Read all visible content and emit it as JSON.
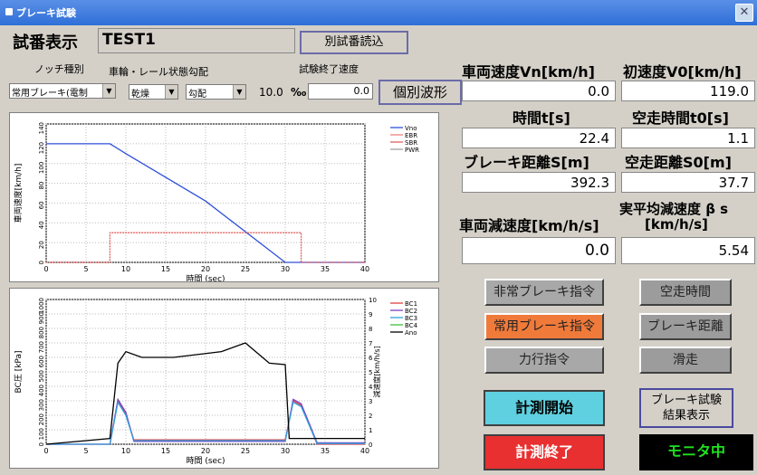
{
  "window": {
    "title": "ブレーキ試験"
  },
  "header": {
    "label": "試番表示",
    "test_id": "TEST1",
    "load_button": "別試番読込",
    "waveform_button": "個別波形"
  },
  "conditions": {
    "notch_label": "ノッチ種別",
    "wheel_label": "車輪・レール状態",
    "grade_label": "勾配",
    "end_speed_label": "試験終了速度",
    "notch_value": "常用ブレーキ(電制",
    "wheel_value": "乾燥",
    "grade_value": "勾配",
    "grade_percent": "10.0",
    "grade_unit": "‰",
    "end_speed_value": "0.0"
  },
  "readouts": {
    "vn_label": "車両速度Vn[km/h]",
    "vn_value": "0.0",
    "v0_label": "初速度V0[km/h]",
    "v0_value": "119.0",
    "t_label": "時間t[s]",
    "t_value": "22.4",
    "t0_label": "空走時間t0[s]",
    "t0_value": "1.1",
    "s_label": "ブレーキ距離S[m]",
    "s_value": "392.3",
    "s0_label": "空走距離S0[m]",
    "s0_value": "37.7",
    "decel_label": "車両減速度[km/h/s]",
    "decel_value": "0.0",
    "beta_label_1": "実平均減速度 β s",
    "beta_label_2": "[km/h/s]",
    "beta_value": "5.54"
  },
  "indicators": {
    "emergency": "非常ブレーキ指令",
    "free_run": "空走時間",
    "service": "常用ブレーキ指令",
    "brake_distance": "ブレーキ距離",
    "power": "力行指令",
    "slide": "滑走"
  },
  "controls": {
    "start": "計測開始",
    "result": "ブレーキ試験\n結果表示",
    "stop": "計測終了",
    "monitor": "モニタ中"
  },
  "colors": {
    "start_bg": "#5fd0e0",
    "stop_bg": "#e83030",
    "monitor_bg": "#000000",
    "monitor_fg": "#20e020",
    "service_bg": "#f07a3a"
  },
  "chart_data": [
    {
      "type": "line",
      "xlabel": "時間 (sec)",
      "ylabel": "車両速度[km/h]",
      "xlim": [
        0,
        40
      ],
      "ylim": [
        0,
        140
      ],
      "xticks": [
        0,
        5,
        10,
        15,
        20,
        25,
        30,
        35,
        40
      ],
      "yticks": [
        0,
        20,
        40,
        60,
        80,
        100,
        120,
        140
      ],
      "legend": [
        "Vno",
        "EBR",
        "SBR",
        "PWR"
      ],
      "series": [
        {
          "name": "Vno",
          "color": "#3050d8",
          "points": [
            [
              0,
              120
            ],
            [
              8,
              120
            ],
            [
              10,
              110
            ],
            [
              20,
              62
            ],
            [
              30,
              0
            ],
            [
              40,
              0
            ]
          ]
        },
        {
          "name": "EBR",
          "color": "#f08080",
          "points": []
        },
        {
          "name": "SBR",
          "color": "#e06060",
          "points": [
            [
              0,
              0
            ],
            [
              8,
              0
            ],
            [
              8,
              30
            ],
            [
              32,
              30
            ],
            [
              32,
              0
            ],
            [
              40,
              0
            ]
          ]
        },
        {
          "name": "PWR",
          "color": "#a0a0a0",
          "points": []
        }
      ]
    },
    {
      "type": "line",
      "xlabel": "時間 (sec)",
      "ylabel": "BC圧 [kPa]",
      "ylabel_right": "減速度[km/h/s]",
      "xlim": [
        0,
        40
      ],
      "ylim": [
        0,
        1000
      ],
      "xticks": [
        0,
        5,
        10,
        15,
        20,
        25,
        30,
        35,
        40
      ],
      "yticks": [
        0,
        100,
        200,
        300,
        400,
        500,
        600,
        700,
        800,
        900,
        1000
      ],
      "yticks_right": [
        0,
        1,
        2,
        3,
        4,
        5,
        6,
        7,
        8,
        9,
        10
      ],
      "legend": [
        "BC1",
        "BC2",
        "BC3",
        "BC4",
        "Ano"
      ],
      "series": [
        {
          "name": "BC1",
          "color": "#e04040",
          "points": [
            [
              0,
              0
            ],
            [
              8,
              0
            ],
            [
              9,
              300
            ],
            [
              10,
              210
            ],
            [
              11,
              30
            ],
            [
              30,
              30
            ],
            [
              31,
              300
            ],
            [
              32,
              270
            ],
            [
              34,
              0
            ],
            [
              40,
              0
            ]
          ]
        },
        {
          "name": "BC2",
          "color": "#8040c0",
          "points": [
            [
              0,
              0
            ],
            [
              8,
              0
            ],
            [
              9,
              310
            ],
            [
              10,
              220
            ],
            [
              11,
              20
            ],
            [
              30,
              20
            ],
            [
              31,
              310
            ],
            [
              32,
              280
            ],
            [
              34,
              10
            ],
            [
              40,
              10
            ]
          ]
        },
        {
          "name": "BC3",
          "color": "#30a0e0",
          "points": [
            [
              0,
              0
            ],
            [
              8,
              0
            ],
            [
              9,
              290
            ],
            [
              10,
              200
            ],
            [
              11,
              25
            ],
            [
              30,
              25
            ],
            [
              31,
              290
            ],
            [
              32,
              260
            ],
            [
              34,
              5
            ],
            [
              40,
              5
            ]
          ]
        },
        {
          "name": "BC4",
          "color": "#40c040",
          "points": []
        },
        {
          "name": "Ano",
          "color": "#000000",
          "points": [
            [
              0,
              0
            ],
            [
              8,
              40
            ],
            [
              9,
              560
            ],
            [
              10,
              640
            ],
            [
              12,
              600
            ],
            [
              16,
              600
            ],
            [
              22,
              640
            ],
            [
              25,
              700
            ],
            [
              28,
              560
            ],
            [
              30,
              550
            ],
            [
              30.5,
              40
            ],
            [
              35,
              40
            ],
            [
              40,
              40
            ]
          ]
        }
      ]
    }
  ]
}
